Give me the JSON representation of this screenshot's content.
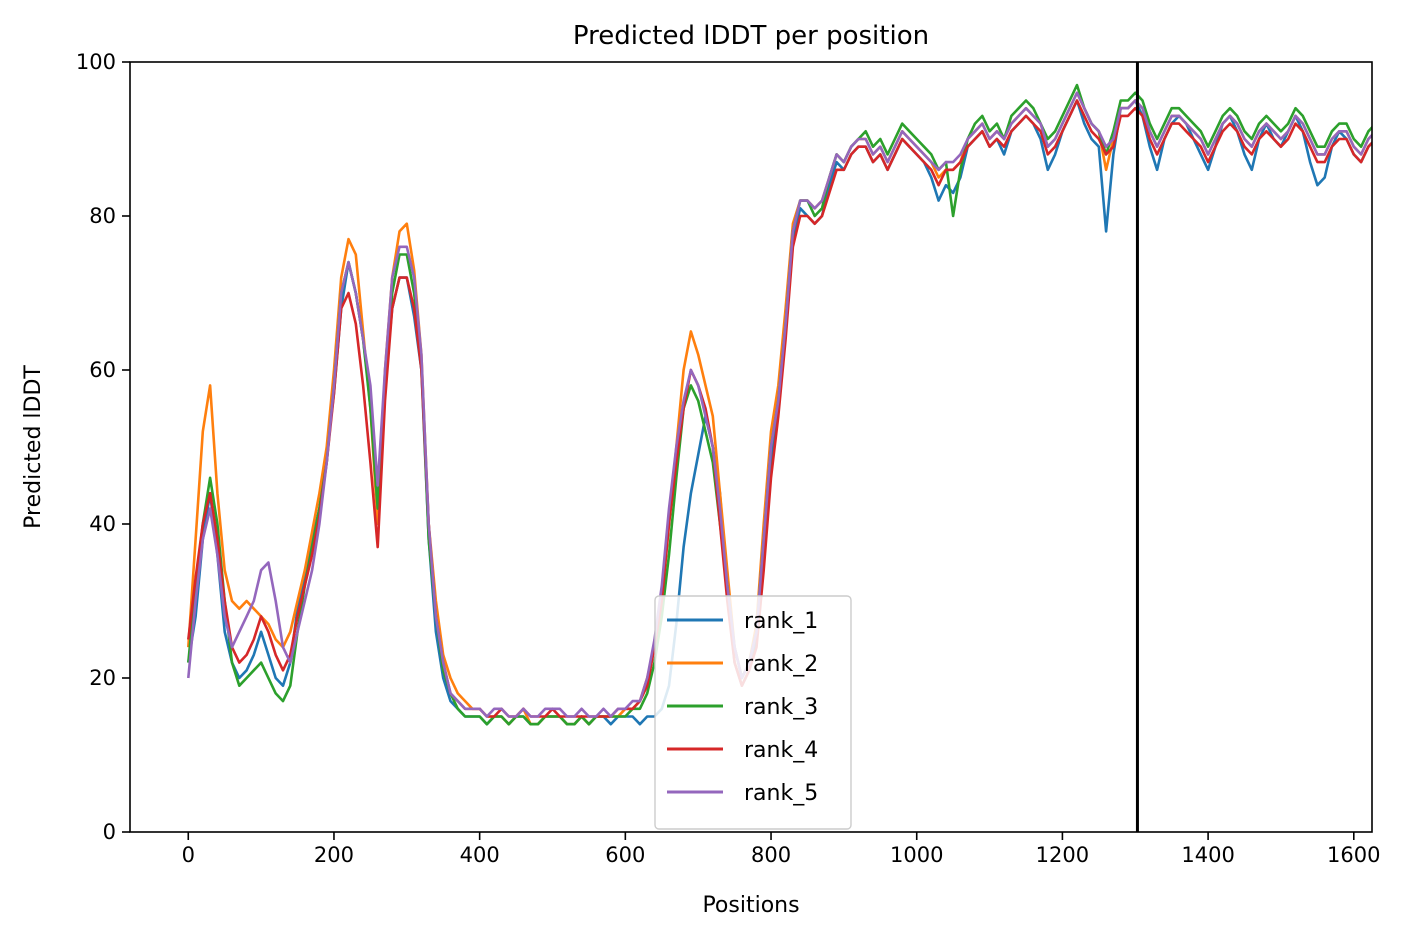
{
  "colors": {
    "rank_1": "#1f77b4",
    "rank_2": "#ff7f0e",
    "rank_3": "#2ca02c",
    "rank_4": "#d62728",
    "rank_5": "#9467bd",
    "divider": "#000000"
  },
  "chart_data": {
    "type": "line",
    "title": "Predicted lDDT per position",
    "xlabel": "Positions",
    "ylabel": "Predicted lDDT",
    "xlim": [
      -80,
      1625
    ],
    "ylim": [
      0,
      100
    ],
    "xticks": [
      0,
      200,
      400,
      600,
      800,
      1000,
      1200,
      1400,
      1600
    ],
    "yticks": [
      0,
      20,
      40,
      60,
      80,
      100
    ],
    "grid": false,
    "legend_position": "bottom-center",
    "chain_break_x": 1303,
    "x_step": 10,
    "series": [
      {
        "name": "rank_1",
        "values": [
          22,
          28,
          38,
          44,
          36,
          26,
          22,
          20,
          21,
          23,
          26,
          23,
          20,
          19,
          22,
          29,
          33,
          38,
          42,
          49,
          57,
          68,
          74,
          70,
          64,
          56,
          42,
          58,
          68,
          72,
          72,
          67,
          60,
          38,
          26,
          20,
          17,
          16,
          15,
          15,
          15,
          14,
          15,
          15,
          14,
          15,
          15,
          14,
          14,
          15,
          15,
          15,
          14,
          14,
          15,
          14,
          15,
          15,
          14,
          15,
          15,
          15,
          14,
          15,
          15,
          16,
          19,
          27,
          37,
          44,
          49,
          54,
          50,
          44,
          31,
          22,
          19,
          21,
          25,
          37,
          48,
          55,
          66,
          77,
          81,
          80,
          79,
          80,
          84,
          87,
          86,
          88,
          89,
          89,
          87,
          88,
          86,
          88,
          90,
          89,
          88,
          87,
          85,
          82,
          84,
          83,
          85,
          89,
          90,
          91,
          89,
          90,
          88,
          91,
          92,
          93,
          92,
          90,
          86,
          88,
          91,
          93,
          95,
          92,
          90,
          89,
          78,
          88,
          94,
          94,
          95,
          93,
          89,
          86,
          90,
          92,
          93,
          92,
          90,
          88,
          86,
          89,
          92,
          93,
          91,
          88,
          86,
          90,
          92,
          90,
          89,
          91,
          93,
          91,
          87,
          84,
          85,
          89,
          91,
          90,
          88,
          87,
          89,
          90,
          89,
          85,
          88,
          91,
          92,
          91,
          88,
          86,
          89,
          90,
          92,
          91,
          89,
          86,
          88,
          91,
          90,
          89,
          89,
          90,
          90,
          88,
          86,
          87,
          89,
          88,
          86,
          84,
          87,
          89,
          90,
          88,
          89,
          90,
          91,
          90,
          89,
          88,
          86,
          88,
          90,
          92,
          91,
          88,
          86,
          85,
          88,
          90,
          93,
          92,
          90,
          88,
          86,
          87,
          88,
          85,
          86,
          80,
          71,
          62,
          61,
          21,
          19,
          20,
          24,
          32,
          46,
          60,
          56,
          54,
          58,
          62,
          60,
          55,
          57,
          61,
          66,
          64,
          60,
          58,
          62,
          66,
          68,
          64,
          60,
          61,
          65,
          68,
          72,
          70,
          66,
          63,
          59,
          54,
          46,
          38,
          28,
          20,
          17,
          16,
          17,
          17,
          18,
          19
        ]
      },
      {
        "name": "rank_2",
        "values": [
          24,
          38,
          52,
          58,
          44,
          34,
          30,
          29,
          30,
          29,
          28,
          27,
          25,
          24,
          26,
          30,
          34,
          39,
          44,
          50,
          60,
          72,
          77,
          75,
          65,
          55,
          40,
          60,
          72,
          78,
          79,
          73,
          62,
          40,
          30,
          23,
          20,
          18,
          17,
          16,
          16,
          15,
          15,
          15,
          14,
          15,
          16,
          14,
          14,
          15,
          15,
          15,
          14,
          14,
          15,
          14,
          15,
          15,
          15,
          15,
          16,
          16,
          17,
          20,
          24,
          30,
          40,
          50,
          60,
          65,
          62,
          58,
          54,
          44,
          34,
          24,
          20,
          22,
          27,
          40,
          52,
          58,
          68,
          79,
          82,
          82,
          81,
          82,
          85,
          88,
          87,
          89,
          90,
          90,
          88,
          89,
          87,
          89,
          91,
          90,
          89,
          88,
          87,
          85,
          86,
          86,
          87,
          90,
          91,
          92,
          90,
          91,
          90,
          92,
          93,
          94,
          93,
          92,
          89,
          90,
          92,
          94,
          96,
          94,
          92,
          91,
          86,
          90,
          94,
          94,
          95,
          94,
          91,
          89,
          91,
          93,
          93,
          92,
          91,
          90,
          88,
          90,
          92,
          93,
          92,
          90,
          89,
          91,
          92,
          91,
          90,
          91,
          93,
          92,
          90,
          88,
          88,
          90,
          91,
          91,
          89,
          88,
          90,
          91,
          90,
          88,
          89,
          91,
          92,
          91,
          90,
          88,
          90,
          91,
          92,
          92,
          90,
          88,
          89,
          91,
          91,
          90,
          90,
          91,
          91,
          89,
          88,
          88,
          90,
          89,
          88,
          87,
          88,
          90,
          91,
          90,
          90,
          91,
          92,
          91,
          90,
          89,
          88,
          89,
          91,
          93,
          92,
          90,
          88,
          88,
          90,
          91,
          93,
          93,
          91,
          90,
          88,
          89,
          90,
          88,
          89,
          86,
          82,
          76,
          70,
          23,
          22,
          23,
          26,
          33,
          48,
          62,
          64,
          66,
          68,
          70,
          69,
          67,
          68,
          72,
          76,
          74,
          72,
          70,
          72,
          76,
          78,
          76,
          74,
          72,
          74,
          78,
          80,
          78,
          75,
          72,
          68,
          62,
          52,
          42,
          30,
          22,
          21,
          23,
          25,
          26,
          22,
          20
        ]
      },
      {
        "name": "rank_3",
        "values": [
          22,
          32,
          40,
          46,
          40,
          30,
          22,
          19,
          20,
          21,
          22,
          20,
          18,
          17,
          19,
          26,
          32,
          37,
          42,
          48,
          58,
          70,
          74,
          70,
          64,
          55,
          42,
          58,
          70,
          75,
          75,
          70,
          61,
          38,
          28,
          21,
          18,
          16,
          15,
          15,
          15,
          14,
          15,
          15,
          14,
          15,
          15,
          14,
          14,
          15,
          15,
          15,
          14,
          14,
          15,
          14,
          15,
          15,
          15,
          15,
          15,
          16,
          16,
          18,
          22,
          28,
          36,
          46,
          55,
          58,
          56,
          52,
          48,
          40,
          32,
          24,
          20,
          22,
          26,
          38,
          50,
          56,
          66,
          78,
          82,
          82,
          80,
          81,
          85,
          88,
          87,
          89,
          90,
          91,
          89,
          90,
          88,
          90,
          92,
          91,
          90,
          89,
          88,
          86,
          87,
          80,
          86,
          90,
          92,
          93,
          91,
          92,
          90,
          93,
          94,
          95,
          94,
          92,
          90,
          91,
          93,
          95,
          97,
          94,
          92,
          91,
          88,
          91,
          95,
          95,
          96,
          95,
          92,
          90,
          92,
          94,
          94,
          93,
          92,
          91,
          89,
          91,
          93,
          94,
          93,
          91,
          90,
          92,
          93,
          92,
          91,
          92,
          94,
          93,
          91,
          89,
          89,
          91,
          92,
          92,
          90,
          89,
          91,
          92,
          91,
          89,
          90,
          92,
          93,
          92,
          91,
          89,
          91,
          92,
          93,
          93,
          91,
          89,
          90,
          92,
          92,
          91,
          91,
          92,
          92,
          90,
          89,
          89,
          91,
          90,
          89,
          88,
          89,
          91,
          92,
          91,
          91,
          92,
          93,
          92,
          91,
          90,
          89,
          90,
          92,
          94,
          93,
          91,
          89,
          89,
          91,
          92,
          94,
          94,
          92,
          91,
          89,
          90,
          91,
          89,
          90,
          87,
          83,
          76,
          70,
          22,
          21,
          21,
          24,
          30,
          44,
          58,
          62,
          63,
          65,
          68,
          66,
          64,
          66,
          70,
          74,
          72,
          70,
          68,
          70,
          74,
          76,
          74,
          72,
          70,
          72,
          76,
          78,
          76,
          73,
          70,
          66,
          60,
          50,
          40,
          28,
          20,
          17,
          15,
          15,
          16,
          17,
          18
        ]
      },
      {
        "name": "rank_4",
        "values": [
          25,
          33,
          40,
          44,
          38,
          30,
          24,
          22,
          23,
          25,
          28,
          26,
          23,
          21,
          23,
          28,
          32,
          36,
          41,
          48,
          57,
          68,
          70,
          66,
          58,
          48,
          37,
          56,
          68,
          72,
          72,
          68,
          60,
          40,
          28,
          22,
          18,
          17,
          16,
          16,
          16,
          15,
          15,
          16,
          15,
          15,
          16,
          15,
          15,
          15,
          16,
          15,
          15,
          15,
          15,
          15,
          15,
          15,
          15,
          16,
          16,
          16,
          17,
          19,
          24,
          30,
          40,
          48,
          55,
          60,
          58,
          55,
          50,
          40,
          30,
          22,
          19,
          21,
          24,
          34,
          46,
          54,
          64,
          76,
          80,
          80,
          79,
          80,
          83,
          86,
          86,
          88,
          89,
          89,
          87,
          88,
          86,
          88,
          90,
          89,
          88,
          87,
          86,
          84,
          86,
          86,
          87,
          89,
          90,
          91,
          89,
          90,
          89,
          91,
          92,
          93,
          92,
          91,
          88,
          89,
          91,
          93,
          95,
          93,
          91,
          90,
          88,
          89,
          93,
          93,
          94,
          93,
          90,
          88,
          90,
          92,
          92,
          91,
          90,
          89,
          87,
          89,
          91,
          92,
          91,
          89,
          88,
          90,
          91,
          90,
          89,
          90,
          92,
          91,
          89,
          87,
          87,
          89,
          90,
          90,
          88,
          87,
          89,
          90,
          89,
          72,
          88,
          90,
          91,
          90,
          89,
          87,
          89,
          90,
          91,
          91,
          89,
          87,
          88,
          90,
          90,
          89,
          89,
          90,
          90,
          88,
          87,
          87,
          89,
          88,
          87,
          86,
          87,
          89,
          90,
          89,
          89,
          90,
          91,
          90,
          89,
          88,
          87,
          88,
          90,
          92,
          91,
          89,
          87,
          87,
          89,
          90,
          92,
          92,
          90,
          89,
          87,
          88,
          89,
          87,
          88,
          85,
          81,
          75,
          70,
          18,
          17,
          18,
          22,
          30,
          46,
          62,
          68,
          72,
          76,
          80,
          82,
          80,
          82,
          85,
          88,
          90,
          88,
          86,
          84,
          82,
          80,
          78,
          75,
          72,
          66,
          58,
          48,
          40,
          32,
          26,
          22,
          19,
          17,
          17,
          18,
          19
        ]
      },
      {
        "name": "rank_5",
        "values": [
          20,
          30,
          38,
          42,
          36,
          28,
          24,
          26,
          28,
          30,
          34,
          35,
          30,
          24,
          22,
          26,
          30,
          34,
          40,
          48,
          58,
          70,
          74,
          70,
          64,
          58,
          45,
          60,
          72,
          76,
          76,
          72,
          62,
          40,
          28,
          22,
          18,
          17,
          16,
          16,
          16,
          15,
          16,
          16,
          15,
          15,
          16,
          15,
          15,
          16,
          16,
          16,
          15,
          15,
          16,
          15,
          15,
          16,
          15,
          16,
          16,
          17,
          17,
          20,
          25,
          32,
          42,
          50,
          56,
          60,
          58,
          54,
          50,
          42,
          32,
          24,
          20,
          22,
          26,
          38,
          50,
          56,
          66,
          78,
          82,
          82,
          81,
          82,
          85,
          88,
          87,
          89,
          90,
          90,
          88,
          89,
          87,
          89,
          91,
          90,
          89,
          88,
          87,
          86,
          87,
          87,
          88,
          90,
          91,
          92,
          90,
          91,
          90,
          92,
          93,
          94,
          93,
          92,
          89,
          90,
          92,
          94,
          96,
          94,
          92,
          91,
          89,
          90,
          94,
          94,
          95,
          94,
          91,
          89,
          91,
          93,
          93,
          92,
          91,
          90,
          88,
          90,
          92,
          93,
          92,
          90,
          89,
          91,
          92,
          91,
          90,
          91,
          93,
          92,
          90,
          88,
          88,
          90,
          91,
          91,
          89,
          88,
          90,
          91,
          90,
          86,
          89,
          91,
          92,
          91,
          90,
          88,
          90,
          91,
          92,
          92,
          90,
          88,
          89,
          91,
          91,
          90,
          90,
          91,
          91,
          89,
          88,
          88,
          90,
          89,
          88,
          87,
          88,
          90,
          91,
          90,
          90,
          91,
          92,
          91,
          90,
          89,
          88,
          89,
          91,
          93,
          92,
          90,
          88,
          88,
          90,
          91,
          93,
          93,
          91,
          90,
          88,
          89,
          90,
          88,
          89,
          86,
          82,
          78,
          74,
          20,
          19,
          20,
          24,
          32,
          48,
          64,
          70,
          74,
          76,
          78,
          80,
          78,
          80,
          82,
          84,
          86,
          84,
          82,
          80,
          80,
          82,
          80,
          78,
          76,
          72,
          66,
          56,
          46,
          36,
          28,
          22,
          18,
          17,
          16,
          18,
          20
        ]
      }
    ]
  }
}
